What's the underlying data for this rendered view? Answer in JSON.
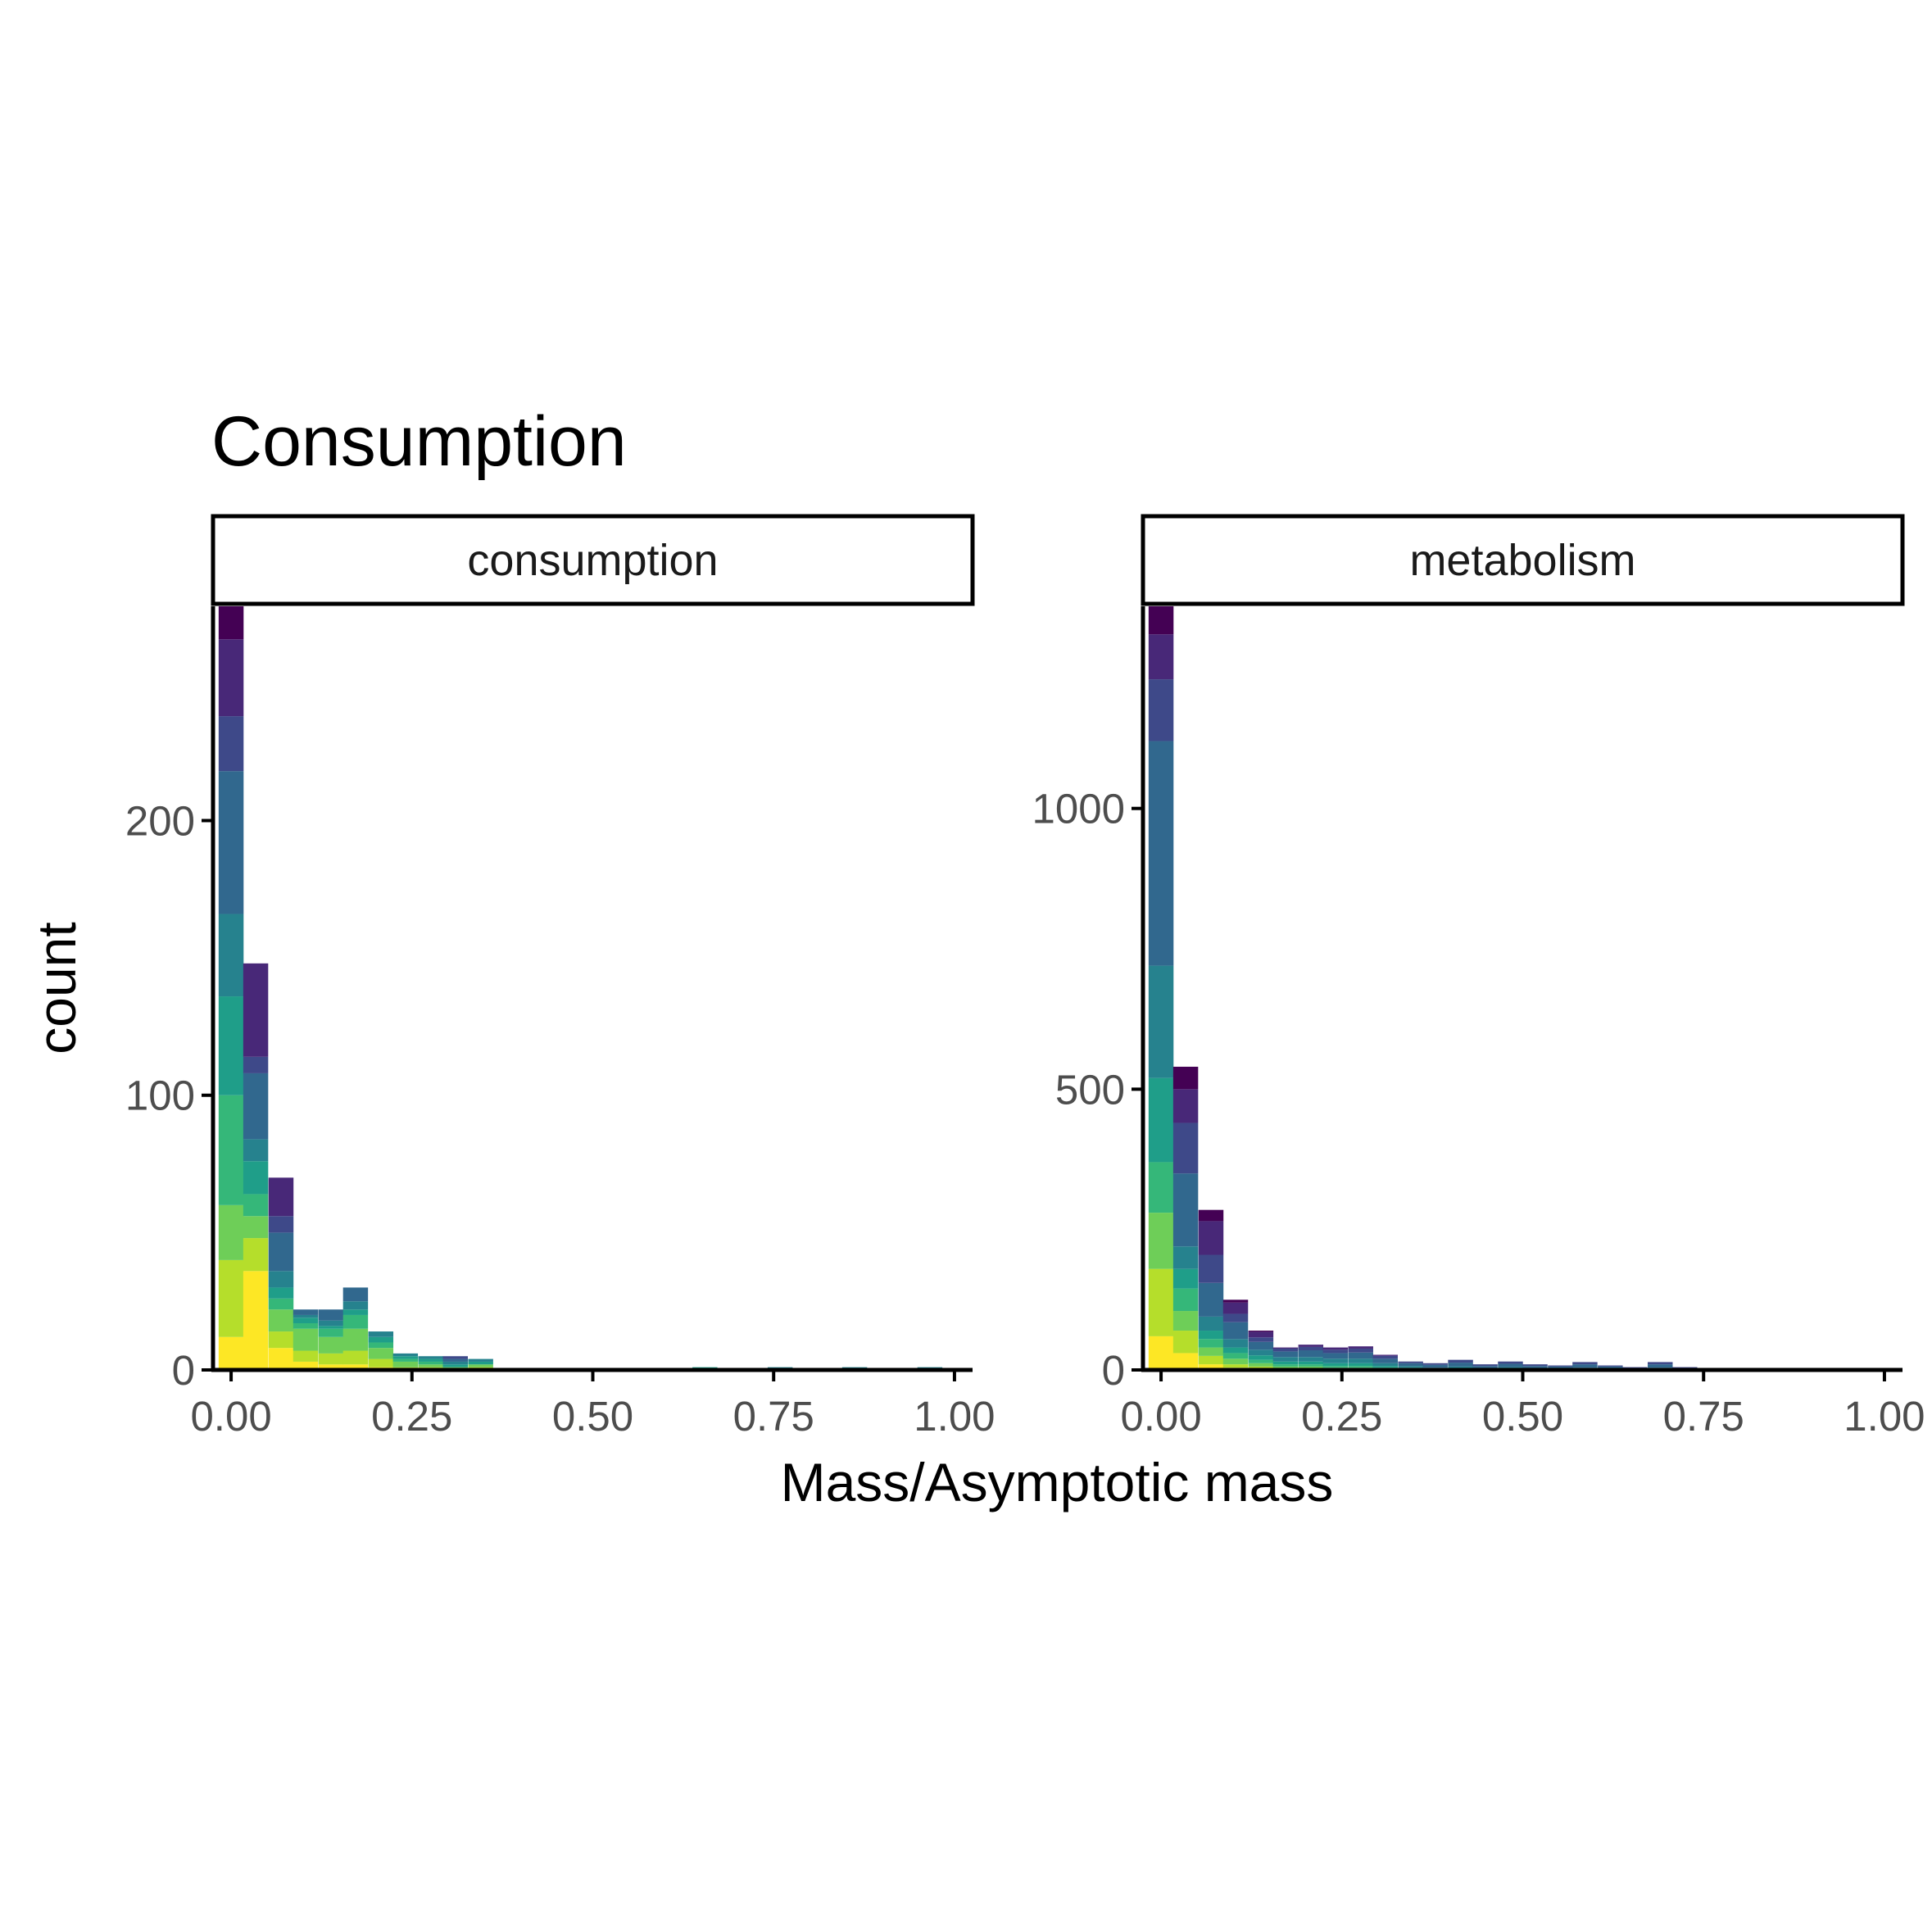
{
  "chart_data": {
    "type": "bar",
    "subtype": "stacked histogram (faceted)",
    "title": "Consumption",
    "xlabel": "Mass/Asymptotic mass",
    "ylabel": "count",
    "palette": [
      "#fde725",
      "#b5de2b",
      "#6ece58",
      "#35b779",
      "#1f9e89",
      "#26828e",
      "#31688e",
      "#3e4989",
      "#482878",
      "#440154"
    ],
    "colors": {
      "axis": "#000000",
      "tick_label": "#4d4d4d",
      "background": "#ffffff"
    },
    "grid": false,
    "legend": "none",
    "xlim": [
      -0.025,
      1.025
    ],
    "bin_width": 0.0345,
    "x_ticks": [
      "0.00",
      "0.25",
      "0.50",
      "0.75",
      "1.00"
    ],
    "panels": [
      {
        "strip_label": "consumption",
        "ylim": [
          0,
          278
        ],
        "y_ticks": [
          0,
          100,
          200
        ],
        "y_tick_labels": [
          "0",
          "100",
          "200"
        ],
        "bins": [
          {
            "x": 0.0,
            "total": 278,
            "stack": [
              12,
              28,
              20,
              40,
              36,
              30,
              52,
              20,
              28,
              12
            ]
          },
          {
            "x": 0.034,
            "total": 148,
            "stack": [
              36,
              12,
              8,
              8,
              12,
              8,
              24,
              6,
              34,
              0
            ]
          },
          {
            "x": 0.069,
            "total": 70,
            "stack": [
              8,
              6,
              8,
              4,
              4,
              6,
              14,
              6,
              14,
              0
            ]
          },
          {
            "x": 0.103,
            "total": 22,
            "stack": [
              3,
              4,
              8,
              2,
              2,
              1,
              2,
              0,
              0,
              0
            ]
          },
          {
            "x": 0.138,
            "total": 22,
            "stack": [
              2,
              4,
              6,
              3,
              1,
              2,
              4,
              0,
              0,
              0
            ]
          },
          {
            "x": 0.172,
            "total": 30,
            "stack": [
              2,
              5,
              8,
              5,
              2,
              3,
              5,
              0,
              0,
              0
            ]
          },
          {
            "x": 0.207,
            "total": 14,
            "stack": [
              1,
              3,
              4,
              2,
              2,
              2,
              0,
              0,
              0,
              0
            ]
          },
          {
            "x": 0.241,
            "total": 6,
            "stack": [
              0,
              1,
              2,
              1,
              1,
              1,
              0,
              0,
              0,
              0
            ]
          },
          {
            "x": 0.276,
            "total": 5,
            "stack": [
              0,
              1,
              1,
              1,
              1,
              1,
              0,
              0,
              0,
              0
            ]
          },
          {
            "x": 0.31,
            "total": 5,
            "stack": [
              0,
              0,
              1,
              0,
              1,
              1,
              1,
              1,
              0,
              0
            ]
          },
          {
            "x": 0.345,
            "total": 4,
            "stack": [
              0,
              1,
              1,
              0,
              1,
              1,
              0,
              0,
              0,
              0
            ]
          },
          {
            "x": 0.655,
            "total": 1,
            "stack": [
              0,
              0,
              0,
              0,
              1,
              0,
              0,
              0,
              0,
              0
            ]
          },
          {
            "x": 0.759,
            "total": 1,
            "stack": [
              0,
              0,
              0,
              0,
              0,
              1,
              0,
              0,
              0,
              0
            ]
          },
          {
            "x": 0.862,
            "total": 1,
            "stack": [
              0,
              0,
              0,
              0,
              0,
              1,
              0,
              0,
              0,
              0
            ]
          },
          {
            "x": 0.966,
            "total": 1,
            "stack": [
              0,
              0,
              0,
              0,
              0,
              1,
              0,
              0,
              0,
              0
            ]
          }
        ]
      },
      {
        "strip_label": "metabolism",
        "ylim": [
          0,
          1360
        ],
        "y_ticks": [
          0,
          500,
          1000
        ],
        "y_tick_labels": [
          "0",
          "500",
          "1000"
        ],
        "bins": [
          {
            "x": 0.0,
            "total": 1360,
            "stack": [
              60,
              120,
              100,
              90,
              150,
              200,
              400,
              110,
              80,
              50
            ]
          },
          {
            "x": 0.034,
            "total": 540,
            "stack": [
              30,
              40,
              35,
              40,
              35,
              40,
              130,
              90,
              60,
              40
            ]
          },
          {
            "x": 0.069,
            "total": 285,
            "stack": [
              10,
              15,
              15,
              15,
              15,
              25,
              60,
              50,
              60,
              20
            ]
          },
          {
            "x": 0.103,
            "total": 125,
            "stack": [
              4,
              6,
              10,
              10,
              10,
              15,
              30,
              15,
              20,
              5
            ]
          },
          {
            "x": 0.138,
            "total": 70,
            "stack": [
              2,
              4,
              6,
              6,
              8,
              10,
              14,
              8,
              10,
              2
            ]
          },
          {
            "x": 0.172,
            "total": 40,
            "stack": [
              0,
              2,
              4,
              4,
              5,
              8,
              10,
              5,
              2,
              0
            ]
          },
          {
            "x": 0.207,
            "total": 45,
            "stack": [
              0,
              2,
              4,
              4,
              5,
              8,
              12,
              6,
              4,
              0
            ]
          },
          {
            "x": 0.241,
            "total": 40,
            "stack": [
              0,
              1,
              3,
              3,
              5,
              8,
              10,
              6,
              4,
              0
            ]
          },
          {
            "x": 0.276,
            "total": 42,
            "stack": [
              0,
              1,
              3,
              3,
              5,
              8,
              11,
              7,
              4,
              0
            ]
          },
          {
            "x": 0.31,
            "total": 27,
            "stack": [
              0,
              0,
              2,
              2,
              3,
              5,
              8,
              5,
              2,
              0
            ]
          },
          {
            "x": 0.345,
            "total": 15,
            "stack": [
              0,
              0,
              1,
              1,
              2,
              3,
              5,
              3,
              0,
              0
            ]
          },
          {
            "x": 0.379,
            "total": 12,
            "stack": [
              0,
              0,
              0,
              1,
              1,
              2,
              5,
              3,
              0,
              0
            ]
          },
          {
            "x": 0.414,
            "total": 18,
            "stack": [
              0,
              0,
              0,
              1,
              2,
              3,
              7,
              5,
              0,
              0
            ]
          },
          {
            "x": 0.448,
            "total": 10,
            "stack": [
              0,
              0,
              0,
              0,
              1,
              2,
              4,
              3,
              0,
              0
            ]
          },
          {
            "x": 0.483,
            "total": 15,
            "stack": [
              0,
              0,
              0,
              1,
              1,
              3,
              6,
              4,
              0,
              0
            ]
          },
          {
            "x": 0.517,
            "total": 10,
            "stack": [
              0,
              0,
              0,
              0,
              1,
              2,
              4,
              3,
              0,
              0
            ]
          },
          {
            "x": 0.552,
            "total": 8,
            "stack": [
              0,
              0,
              0,
              0,
              1,
              2,
              3,
              2,
              0,
              0
            ]
          },
          {
            "x": 0.586,
            "total": 14,
            "stack": [
              0,
              0,
              0,
              0,
              1,
              3,
              6,
              4,
              0,
              0
            ]
          },
          {
            "x": 0.621,
            "total": 8,
            "stack": [
              0,
              0,
              0,
              0,
              1,
              2,
              3,
              2,
              0,
              0
            ]
          },
          {
            "x": 0.655,
            "total": 5,
            "stack": [
              0,
              0,
              0,
              0,
              0,
              1,
              2,
              2,
              0,
              0
            ]
          },
          {
            "x": 0.69,
            "total": 14,
            "stack": [
              0,
              0,
              0,
              0,
              1,
              3,
              6,
              4,
              0,
              0
            ]
          },
          {
            "x": 0.724,
            "total": 5,
            "stack": [
              0,
              0,
              0,
              0,
              0,
              1,
              2,
              2,
              0,
              0
            ]
          },
          {
            "x": 0.759,
            "total": 2,
            "stack": [
              0,
              0,
              0,
              0,
              0,
              0,
              1,
              1,
              0,
              0
            ]
          }
        ]
      }
    ]
  }
}
